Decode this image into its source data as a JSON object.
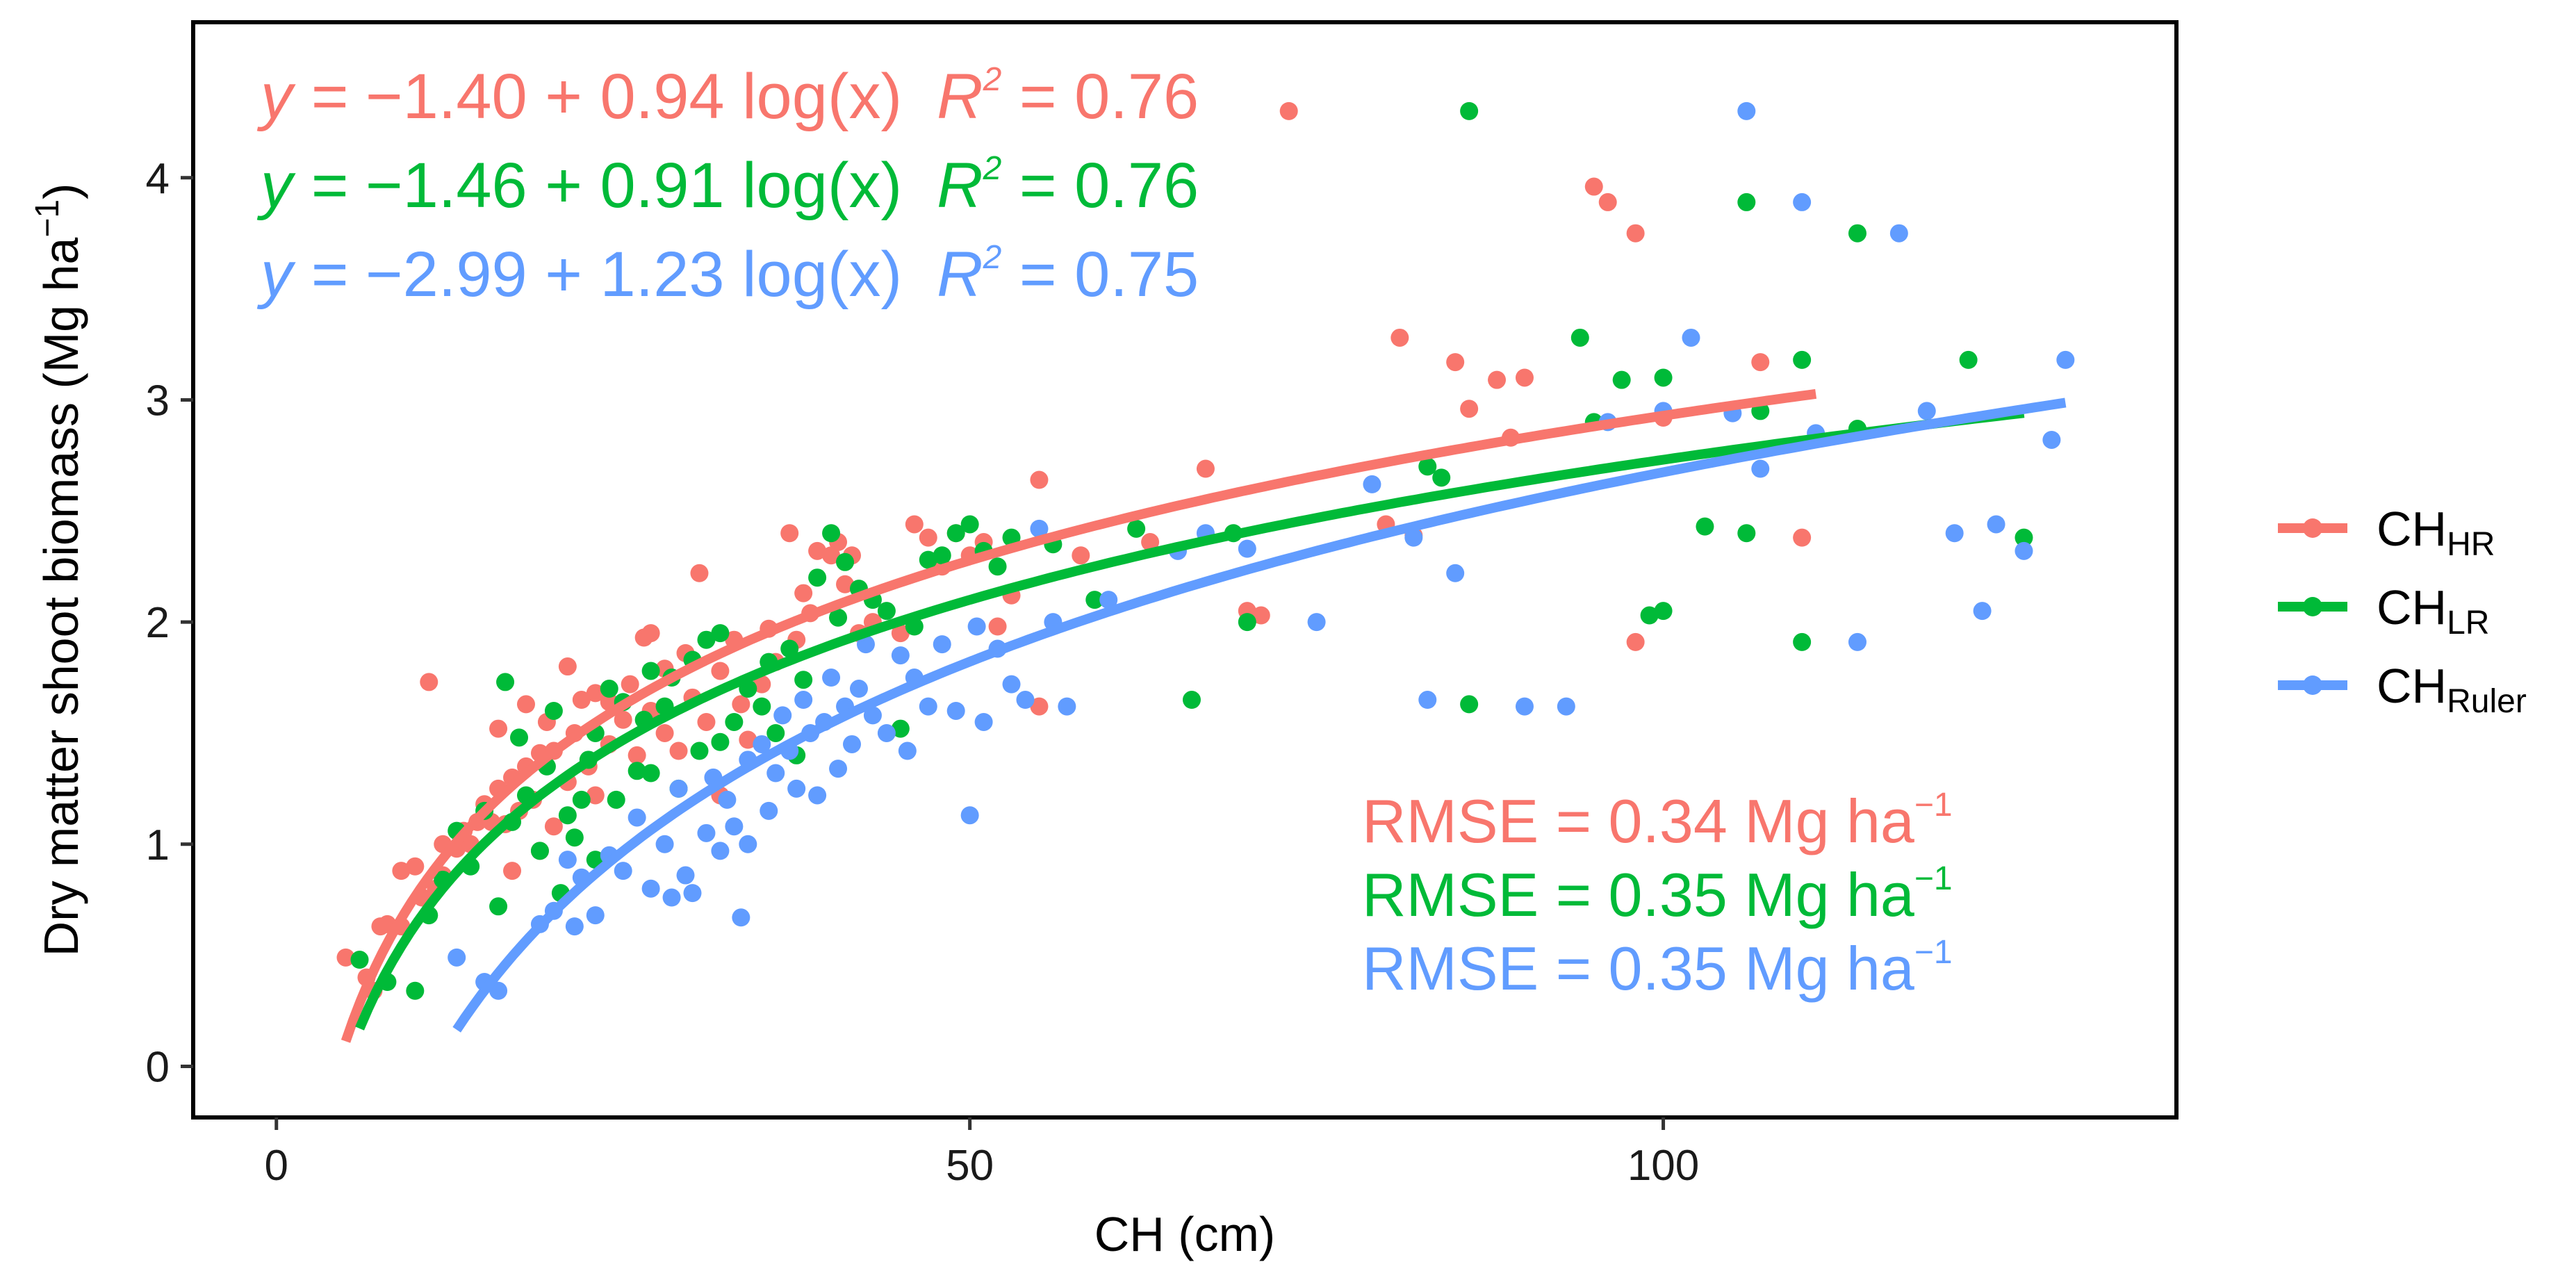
{
  "chart_data": {
    "type": "scatter",
    "title": "",
    "xlabel": "CH (cm)",
    "ylabel": "Dry matter shoot biomass (Mg ha",
    "ylabel_sup": "−1",
    "ylabel_close": ")",
    "xlim": [
      -6,
      137
    ],
    "ylim": [
      -0.23,
      4.7
    ],
    "x_ticks": [
      0,
      50,
      100
    ],
    "x_tick_labels": [
      "0",
      "50",
      "100"
    ],
    "y_ticks": [
      0,
      1,
      2,
      3,
      4
    ],
    "y_tick_labels": [
      "0",
      "1",
      "2",
      "3",
      "4"
    ],
    "grid": false,
    "legend_position": "right",
    "series": [
      {
        "name": "CH_HR",
        "label_main": "CH",
        "label_sub": "HR",
        "color": "#F8766D",
        "fit": {
          "intercept": -1.4,
          "slope": 0.94,
          "x_range": [
            5,
            111
          ]
        },
        "equation": {
          "y_lhs": "y = ",
          "rhs": "−1.40 + 0.94 log(x)",
          "r_label": "R",
          "r_sup": "2",
          "r_value": " = 0.76"
        },
        "rmse": {
          "text": "RMSE = 0.34 Mg ha",
          "sup": "−1"
        },
        "points": [
          [
            5,
            0.49
          ],
          [
            6.5,
            0.4
          ],
          [
            7,
            0.34
          ],
          [
            7.5,
            0.63
          ],
          [
            8,
            0.64
          ],
          [
            9,
            0.63
          ],
          [
            9,
            0.88
          ],
          [
            10,
            0.9
          ],
          [
            10.5,
            0.76
          ],
          [
            11,
            1.73
          ],
          [
            11.5,
            0.8
          ],
          [
            12,
            0.86
          ],
          [
            12,
            1.0
          ],
          [
            13,
            0.98
          ],
          [
            13.5,
            1.06
          ],
          [
            14,
            1.0
          ],
          [
            14.5,
            1.1
          ],
          [
            15,
            1.18
          ],
          [
            15.5,
            1.1
          ],
          [
            16,
            1.25
          ],
          [
            16,
            1.52
          ],
          [
            16.5,
            1.09
          ],
          [
            17,
            1.3
          ],
          [
            17,
            0.88
          ],
          [
            17.5,
            1.15
          ],
          [
            18,
            1.35
          ],
          [
            18,
            1.63
          ],
          [
            18.5,
            1.2
          ],
          [
            19,
            1.41
          ],
          [
            19,
            0.97
          ],
          [
            19.5,
            1.55
          ],
          [
            20,
            1.08
          ],
          [
            20,
            1.42
          ],
          [
            21,
            1.8
          ],
          [
            21,
            1.28
          ],
          [
            21.5,
            1.5
          ],
          [
            22,
            1.65
          ],
          [
            22.5,
            1.35
          ],
          [
            23,
            1.22
          ],
          [
            23,
            1.68
          ],
          [
            24,
            1.45
          ],
          [
            24,
            1.64
          ],
          [
            25,
            1.56
          ],
          [
            25.5,
            1.72
          ],
          [
            26,
            1.4
          ],
          [
            26.5,
            1.93
          ],
          [
            27,
            1.95
          ],
          [
            27,
            1.6
          ],
          [
            28,
            1.5
          ],
          [
            28,
            1.79
          ],
          [
            29,
            1.42
          ],
          [
            29.5,
            1.86
          ],
          [
            30,
            1.66
          ],
          [
            30.5,
            2.22
          ],
          [
            31,
            1.55
          ],
          [
            32,
            1.22
          ],
          [
            32,
            1.78
          ],
          [
            33,
            1.92
          ],
          [
            33.5,
            1.63
          ],
          [
            34,
            1.47
          ],
          [
            35,
            1.72
          ],
          [
            35.5,
            1.97
          ],
          [
            36,
            1.82
          ],
          [
            37,
            2.4
          ],
          [
            37.5,
            1.92
          ],
          [
            38,
            2.13
          ],
          [
            38.5,
            2.04
          ],
          [
            39,
            2.32
          ],
          [
            40,
            2.3
          ],
          [
            40.5,
            2.36
          ],
          [
            41,
            2.17
          ],
          [
            41.5,
            2.3
          ],
          [
            42,
            1.95
          ],
          [
            43,
            2.0
          ],
          [
            45,
            1.95
          ],
          [
            46,
            2.44
          ],
          [
            47,
            2.38
          ],
          [
            48,
            2.25
          ],
          [
            49,
            2.4
          ],
          [
            50,
            2.3
          ],
          [
            51,
            2.36
          ],
          [
            52,
            1.98
          ],
          [
            53,
            2.12
          ],
          [
            55,
            2.64
          ],
          [
            55,
            1.62
          ],
          [
            58,
            2.3
          ],
          [
            63,
            2.36
          ],
          [
            67,
            2.69
          ],
          [
            70,
            2.05
          ],
          [
            71,
            2.03
          ],
          [
            73,
            4.3
          ],
          [
            80,
            2.44
          ],
          [
            81,
            3.28
          ],
          [
            82,
            2.39
          ],
          [
            85,
            3.17
          ],
          [
            86,
            2.96
          ],
          [
            88,
            3.09
          ],
          [
            89,
            2.83
          ],
          [
            90,
            3.1
          ],
          [
            95,
            3.96
          ],
          [
            96,
            3.89
          ],
          [
            98,
            1.91
          ],
          [
            98,
            3.75
          ],
          [
            100,
            2.92
          ],
          [
            107,
            3.17
          ],
          [
            110,
            2.38
          ]
        ]
      },
      {
        "name": "CH_LR",
        "label_main": "CH",
        "label_sub": "LR",
        "color": "#00BA38",
        "fit": {
          "intercept": -1.46,
          "slope": 0.91,
          "x_range": [
            6,
            126
          ]
        },
        "equation": {
          "y_lhs": "y = ",
          "rhs": "−1.46 + 0.91 log(x)",
          "r_label": "R",
          "r_sup": "2",
          "r_value": " = 0.76"
        },
        "rmse": {
          "text": "RMSE = 0.35 Mg ha",
          "sup": "−1"
        },
        "points": [
          [
            6,
            0.48
          ],
          [
            8,
            0.38
          ],
          [
            10,
            0.34
          ],
          [
            11,
            0.68
          ],
          [
            12,
            0.84
          ],
          [
            13,
            1.06
          ],
          [
            14,
            0.9
          ],
          [
            15,
            1.15
          ],
          [
            16,
            0.72
          ],
          [
            16.5,
            1.73
          ],
          [
            17,
            1.1
          ],
          [
            17.5,
            1.48
          ],
          [
            18,
            1.22
          ],
          [
            19,
            0.97
          ],
          [
            19.5,
            1.35
          ],
          [
            20,
            1.6
          ],
          [
            20.5,
            0.78
          ],
          [
            21,
            1.13
          ],
          [
            21.5,
            1.03
          ],
          [
            22,
            1.2
          ],
          [
            22.5,
            1.38
          ],
          [
            23,
            0.93
          ],
          [
            23,
            1.5
          ],
          [
            24,
            1.7
          ],
          [
            24.5,
            1.2
          ],
          [
            25,
            1.64
          ],
          [
            26,
            1.33
          ],
          [
            26.5,
            1.56
          ],
          [
            27,
            1.78
          ],
          [
            27,
            1.32
          ],
          [
            28,
            1.62
          ],
          [
            28.5,
            1.75
          ],
          [
            29,
            1.25
          ],
          [
            30,
            1.83
          ],
          [
            30.5,
            1.42
          ],
          [
            31,
            1.92
          ],
          [
            32,
            1.95
          ],
          [
            32,
            1.46
          ],
          [
            33,
            1.55
          ],
          [
            34,
            1.7
          ],
          [
            35,
            1.62
          ],
          [
            35.5,
            1.82
          ],
          [
            36,
            1.5
          ],
          [
            37,
            1.88
          ],
          [
            37.5,
            1.4
          ],
          [
            38,
            1.74
          ],
          [
            39,
            2.2
          ],
          [
            40,
            2.4
          ],
          [
            40.5,
            2.02
          ],
          [
            41,
            2.27
          ],
          [
            42,
            2.15
          ],
          [
            43,
            2.1
          ],
          [
            44,
            2.05
          ],
          [
            45,
            1.52
          ],
          [
            46,
            1.98
          ],
          [
            47,
            2.28
          ],
          [
            48,
            2.3
          ],
          [
            49,
            2.4
          ],
          [
            50,
            2.44
          ],
          [
            51,
            2.32
          ],
          [
            52,
            2.25
          ],
          [
            53,
            2.38
          ],
          [
            56,
            2.35
          ],
          [
            59,
            2.1
          ],
          [
            62,
            2.42
          ],
          [
            66,
            1.65
          ],
          [
            69,
            2.4
          ],
          [
            70,
            2.0
          ],
          [
            83,
            2.7
          ],
          [
            84,
            2.65
          ],
          [
            86,
            4.3
          ],
          [
            86,
            1.63
          ],
          [
            94,
            3.28
          ],
          [
            95,
            2.9
          ],
          [
            97,
            3.09
          ],
          [
            99,
            2.03
          ],
          [
            100,
            2.05
          ],
          [
            100,
            3.1
          ],
          [
            103,
            2.43
          ],
          [
            106,
            2.4
          ],
          [
            106,
            3.89
          ],
          [
            107,
            2.95
          ],
          [
            110,
            1.91
          ],
          [
            110,
            3.18
          ],
          [
            114,
            3.75
          ],
          [
            114,
            2.87
          ],
          [
            122,
            3.18
          ],
          [
            126,
            2.38
          ]
        ]
      },
      {
        "name": "CH_Ruler",
        "label_main": "CH",
        "label_sub": "Ruler",
        "color": "#619CFF",
        "fit": {
          "intercept": -2.99,
          "slope": 1.23,
          "x_range": [
            13,
            129
          ]
        },
        "equation": {
          "y_lhs": "y = ",
          "rhs": "−2.99 + 1.23 log(x)",
          "r_label": "R",
          "r_sup": "2",
          "r_value": " = 0.75"
        },
        "rmse": {
          "text": "RMSE = 0.35 Mg ha",
          "sup": "−1"
        },
        "points": [
          [
            13,
            0.49
          ],
          [
            15,
            0.38
          ],
          [
            16,
            0.34
          ],
          [
            19,
            0.64
          ],
          [
            20,
            0.7
          ],
          [
            21,
            0.93
          ],
          [
            21.5,
            0.63
          ],
          [
            22,
            0.85
          ],
          [
            23,
            0.68
          ],
          [
            24,
            0.95
          ],
          [
            25,
            0.88
          ],
          [
            26,
            1.12
          ],
          [
            27,
            0.8
          ],
          [
            28,
            1.0
          ],
          [
            28.5,
            0.76
          ],
          [
            29,
            1.25
          ],
          [
            29.5,
            0.86
          ],
          [
            30,
            0.78
          ],
          [
            31,
            1.05
          ],
          [
            31.5,
            1.3
          ],
          [
            32,
            0.97
          ],
          [
            32.5,
            1.2
          ],
          [
            33,
            1.08
          ],
          [
            33.5,
            0.67
          ],
          [
            34,
            1.38
          ],
          [
            34,
            1.0
          ],
          [
            35,
            1.45
          ],
          [
            35.5,
            1.15
          ],
          [
            36,
            1.32
          ],
          [
            36.5,
            1.58
          ],
          [
            37,
            1.42
          ],
          [
            37.5,
            1.25
          ],
          [
            38,
            1.65
          ],
          [
            38.5,
            1.5
          ],
          [
            39,
            1.22
          ],
          [
            39.5,
            1.55
          ],
          [
            40,
            1.75
          ],
          [
            40.5,
            1.34
          ],
          [
            41,
            1.62
          ],
          [
            41.5,
            1.45
          ],
          [
            42,
            1.7
          ],
          [
            42.5,
            1.9
          ],
          [
            43,
            1.58
          ],
          [
            44,
            1.5
          ],
          [
            45,
            1.85
          ],
          [
            45.5,
            1.42
          ],
          [
            46,
            1.75
          ],
          [
            47,
            1.62
          ],
          [
            48,
            1.9
          ],
          [
            49,
            1.6
          ],
          [
            50,
            1.13
          ],
          [
            50.5,
            1.98
          ],
          [
            51,
            1.55
          ],
          [
            52,
            1.88
          ],
          [
            53,
            1.72
          ],
          [
            54,
            1.65
          ],
          [
            55,
            2.42
          ],
          [
            56,
            2.0
          ],
          [
            57,
            1.62
          ],
          [
            60,
            2.1
          ],
          [
            65,
            2.32
          ],
          [
            67,
            2.4
          ],
          [
            70,
            2.33
          ],
          [
            75,
            2.0
          ],
          [
            79,
            2.62
          ],
          [
            82,
            2.38
          ],
          [
            83,
            1.65
          ],
          [
            85,
            2.22
          ],
          [
            90,
            1.62
          ],
          [
            93,
            1.62
          ],
          [
            96,
            2.9
          ],
          [
            100,
            2.95
          ],
          [
            102,
            3.28
          ],
          [
            105,
            2.94
          ],
          [
            106,
            4.3
          ],
          [
            107,
            2.69
          ],
          [
            110,
            3.89
          ],
          [
            111,
            2.85
          ],
          [
            114,
            1.91
          ],
          [
            117,
            3.75
          ],
          [
            119,
            2.95
          ],
          [
            121,
            2.4
          ],
          [
            123,
            2.05
          ],
          [
            124,
            2.44
          ],
          [
            126,
            2.32
          ],
          [
            128,
            2.82
          ],
          [
            129,
            3.18
          ]
        ]
      }
    ]
  }
}
